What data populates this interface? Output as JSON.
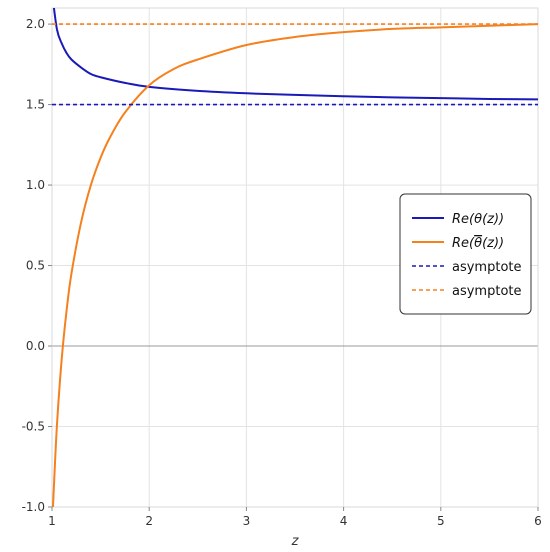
{
  "chart_data": {
    "type": "line",
    "title": "",
    "xlabel": "z",
    "ylabel": "",
    "xlim": [
      1,
      6
    ],
    "ylim": [
      -1.0,
      2.1
    ],
    "grid": true,
    "x_ticks": [
      1,
      2,
      3,
      4,
      5,
      6
    ],
    "x_tick_labels": [
      "1",
      "2",
      "3",
      "4",
      "5",
      "6"
    ],
    "y_ticks": [
      -1.0,
      -0.5,
      0.0,
      0.5,
      1.0,
      1.5,
      2.0
    ],
    "y_tick_labels": [
      "-1.0",
      "-0.5",
      "0.0",
      "0.5",
      "1.0",
      "1.5",
      "2.0"
    ],
    "zero_line_y": 0,
    "legend_position": "center-right",
    "series": [
      {
        "name": "Re(θ(z))",
        "legend_prefix": "Re(",
        "legend_symbol": "θ",
        "legend_suffix": "(z))",
        "legend_overline": false,
        "style": "solid",
        "color": "#1a1ab8",
        "x": [
          1.0,
          1.05,
          1.1,
          1.15,
          1.2,
          1.3,
          1.4,
          1.5,
          1.75,
          2.0,
          2.5,
          3.0,
          3.5,
          4.0,
          4.5,
          5.0,
          5.5,
          6.0
        ],
        "y": [
          2.2,
          1.97,
          1.88,
          1.82,
          1.78,
          1.73,
          1.69,
          1.67,
          1.635,
          1.61,
          1.585,
          1.57,
          1.56,
          1.552,
          1.545,
          1.54,
          1.535,
          1.532
        ]
      },
      {
        "name": "Re(θ̄(z))",
        "legend_prefix": "Re(",
        "legend_symbol": "θ",
        "legend_suffix": "(z))",
        "legend_overline": true,
        "style": "solid",
        "color": "#f5801e",
        "x": [
          1.01,
          1.05,
          1.1,
          1.15,
          1.2,
          1.3,
          1.4,
          1.5,
          1.6,
          1.75,
          2.0,
          2.25,
          2.5,
          3.0,
          3.5,
          4.0,
          4.5,
          5.0,
          5.5,
          6.0
        ],
        "y": [
          -1.0,
          -0.5,
          -0.08,
          0.22,
          0.45,
          0.77,
          1.0,
          1.17,
          1.3,
          1.45,
          1.62,
          1.72,
          1.78,
          1.87,
          1.92,
          1.95,
          1.97,
          1.98,
          1.99,
          2.0
        ]
      },
      {
        "name": "asymptote",
        "style": "dashed",
        "color": "#1a1ab8",
        "x": [
          1,
          6
        ],
        "y": [
          1.5,
          1.5
        ]
      },
      {
        "name": "asymptote",
        "style": "dashed",
        "color": "#f5801e",
        "x": [
          1,
          6
        ],
        "y": [
          2.0,
          2.0
        ]
      }
    ]
  }
}
